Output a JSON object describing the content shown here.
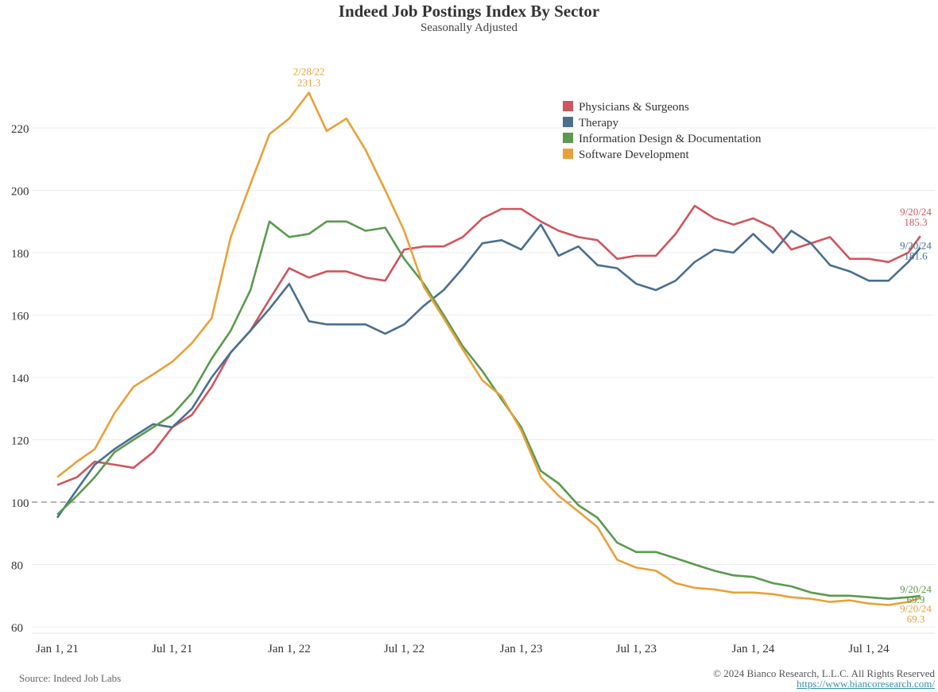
{
  "chart_data": {
    "type": "line",
    "title": "Indeed Job Postings Index By Sector",
    "subtitle": "Seasonally Adjusted",
    "x": [
      "2021-01-01",
      "2021-02-01",
      "2021-03-01",
      "2021-04-01",
      "2021-05-01",
      "2021-06-01",
      "2021-07-01",
      "2021-08-01",
      "2021-09-01",
      "2021-10-01",
      "2021-11-01",
      "2021-12-01",
      "2022-01-01",
      "2022-02-01",
      "2022-03-01",
      "2022-04-01",
      "2022-05-01",
      "2022-06-01",
      "2022-07-01",
      "2022-08-01",
      "2022-09-01",
      "2022-10-01",
      "2022-11-01",
      "2022-12-01",
      "2023-01-01",
      "2023-02-01",
      "2023-03-01",
      "2023-04-01",
      "2023-05-01",
      "2023-06-01",
      "2023-07-01",
      "2023-08-01",
      "2023-09-01",
      "2023-10-01",
      "2023-11-01",
      "2023-12-01",
      "2024-01-01",
      "2024-02-01",
      "2024-03-01",
      "2024-04-01",
      "2024-05-01",
      "2024-06-01",
      "2024-07-01",
      "2024-08-01",
      "2024-09-01",
      "2024-09-20"
    ],
    "series": [
      {
        "name": "Physicians & Surgeons",
        "color": "#d0555c",
        "values": [
          105.5,
          108,
          113,
          112,
          111,
          116,
          124,
          128,
          137,
          148,
          155,
          165,
          175,
          172,
          174,
          174,
          172,
          171,
          181,
          182,
          182,
          185,
          191,
          194,
          194,
          190,
          187,
          185,
          184,
          178,
          179,
          179,
          186,
          195,
          191,
          189,
          191,
          188,
          181,
          183,
          185,
          178,
          178,
          177,
          180,
          185.3
        ]
      },
      {
        "name": "Therapy",
        "color": "#4a6f8f",
        "values": [
          95,
          104,
          112,
          117,
          121,
          125,
          124,
          130,
          140,
          148,
          155,
          162,
          170,
          158,
          157,
          157,
          157,
          154,
          157,
          163,
          168,
          175,
          183,
          184,
          181,
          189,
          179,
          182,
          176,
          175,
          170,
          168,
          171,
          177,
          181,
          180,
          186,
          180,
          187,
          183,
          176,
          174,
          171,
          171,
          177,
          181.6
        ]
      },
      {
        "name": "Information Design & Documentation",
        "color": "#5a9a4e",
        "values": [
          96,
          102,
          108,
          116,
          120,
          124,
          128,
          135,
          146,
          155,
          168,
          190,
          185,
          186,
          190,
          190,
          187,
          188,
          178,
          170,
          160,
          150,
          142,
          133,
          124,
          110,
          106,
          99,
          95,
          87,
          84,
          84,
          82,
          80,
          78,
          76.5,
          76,
          74,
          73,
          71,
          70,
          70,
          69.5,
          69,
          69.5,
          69.9
        ]
      },
      {
        "name": "Software Development",
        "color": "#e8a13a",
        "values": [
          108,
          113,
          117,
          128.5,
          137,
          141,
          145,
          151,
          159,
          185,
          202,
          218,
          223,
          231.3,
          219,
          223,
          213,
          200,
          187,
          169,
          159,
          149,
          139,
          134,
          123,
          108,
          102,
          97,
          92,
          81.5,
          79,
          78,
          74,
          72.5,
          72,
          71,
          71,
          70.5,
          69.5,
          69,
          68,
          68.5,
          67.5,
          67,
          68,
          69.3
        ]
      }
    ],
    "xticks": [
      {
        "date": "2021-01-01",
        "label": "Jan 1, 21"
      },
      {
        "date": "2021-07-01",
        "label": "Jul 1, 21"
      },
      {
        "date": "2022-01-01",
        "label": "Jan 1, 22"
      },
      {
        "date": "2022-07-01",
        "label": "Jul 1, 22"
      },
      {
        "date": "2023-01-01",
        "label": "Jan 1, 23"
      },
      {
        "date": "2023-07-01",
        "label": "Jul 1, 23"
      },
      {
        "date": "2024-01-01",
        "label": "Jan 1, 24"
      },
      {
        "date": "2024-07-01",
        "label": "Jul 1, 24"
      }
    ],
    "yticks": [
      60,
      80,
      100,
      120,
      140,
      160,
      180,
      200,
      220
    ],
    "ylim": [
      60,
      235
    ],
    "reference_line": 100,
    "grid": true,
    "legend": "top-right",
    "annotations": [
      {
        "series": 3,
        "date": "2/28/22",
        "value": "231.3",
        "position": "above"
      },
      {
        "series": 0,
        "date": "9/20/24",
        "value": "185.3",
        "position": "end"
      },
      {
        "series": 1,
        "date": "9/20/24",
        "value": "181.6",
        "position": "end"
      },
      {
        "series": 2,
        "date": "9/20/24",
        "value": "69.9",
        "position": "end"
      },
      {
        "series": 3,
        "date": "9/20/24",
        "value": "69.3",
        "position": "end"
      }
    ]
  },
  "footer": {
    "source": "Source: Indeed Job Labs",
    "copyright": "© 2024 Bianco Research, L.L.C. All Rights Reserved",
    "url": "https://www.biancoresearch.com/"
  }
}
